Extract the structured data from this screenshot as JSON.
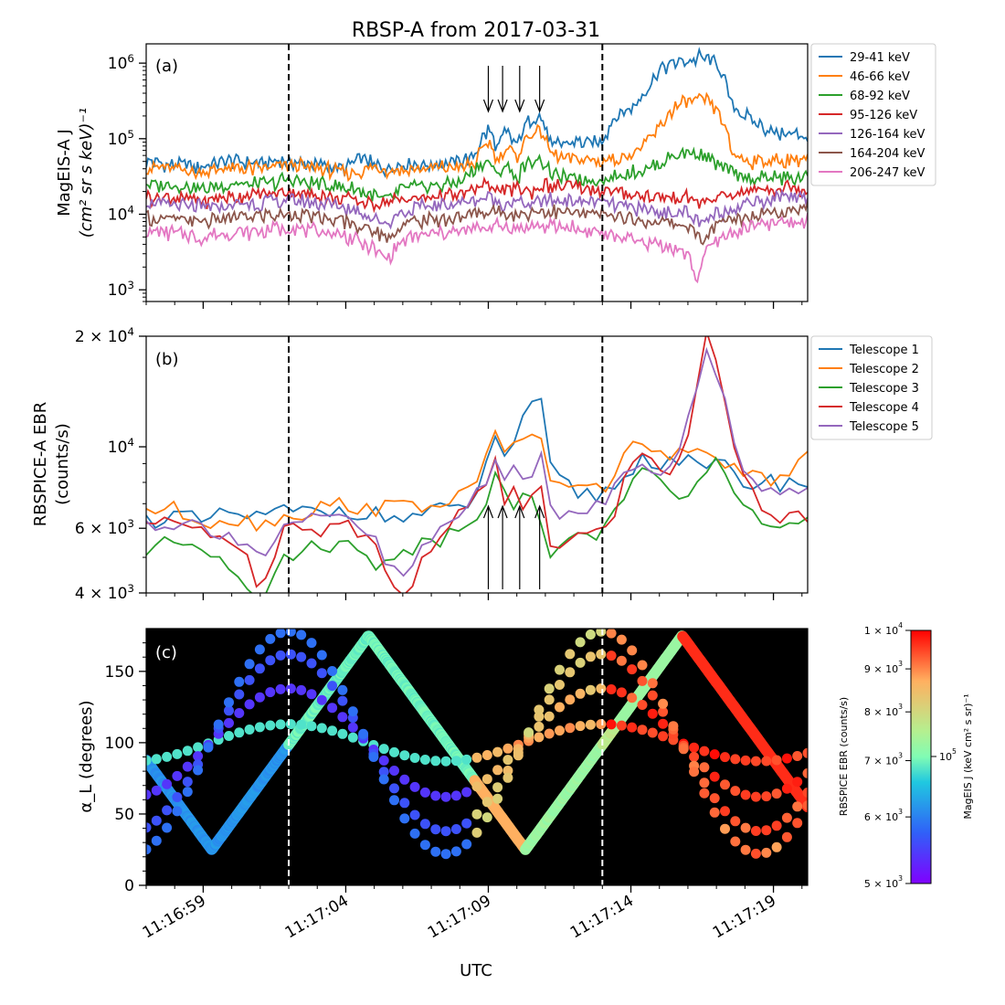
{
  "title": "RBSP-A from 2017-03-31",
  "xlabel": "UTC",
  "x_ticks": [
    {
      "t": 0,
      "label": "11:16:59"
    },
    {
      "t": 5,
      "label": "11:17:04"
    },
    {
      "t": 10,
      "label": "11:17:09"
    },
    {
      "t": 15,
      "label": "11:17:14"
    },
    {
      "t": 20,
      "label": "11:17:19"
    }
  ],
  "chart_data": [
    {
      "type": "line",
      "panel": "(a)",
      "ylabel_line1": "MagEIS-A J",
      "ylabel_line2": "(cm² sr s keV)⁻¹",
      "yscale": "log",
      "ylim": [
        700,
        1800000
      ],
      "y_ticks": [
        {
          "v": 1000,
          "base": "10",
          "exp": "3"
        },
        {
          "v": 10000,
          "base": "10",
          "exp": "4"
        },
        {
          "v": 100000,
          "base": "10",
          "exp": "5"
        },
        {
          "v": 1000000,
          "base": "10",
          "exp": "6"
        }
      ],
      "xlim": [
        -2.0,
        21.2
      ],
      "vlines": [
        3.0,
        14.0
      ],
      "arrows_x": [
        10.0,
        10.5,
        11.1,
        11.8
      ],
      "arrow_direction": "down",
      "legend_position": "outside-right",
      "series": [
        {
          "name": "29-41 keV",
          "color": "#1f77b4",
          "x": [
            -2.0,
            -1.0,
            0.0,
            1.0,
            2.0,
            3.0,
            4.0,
            5.0,
            5.5,
            6.0,
            6.5,
            7.0,
            8.0,
            9.0,
            9.5,
            10.0,
            10.3,
            10.6,
            11.0,
            11.3,
            11.8,
            12.2,
            13.0,
            14.0,
            14.5,
            15.0,
            15.5,
            16.0,
            16.5,
            17.0,
            17.5,
            18.0,
            18.5,
            19.0,
            19.5,
            20.0,
            21.0
          ],
          "values": [
            50000,
            45000,
            42000,
            50000,
            48000,
            50000,
            45000,
            40000,
            55000,
            45000,
            40000,
            48000,
            45000,
            50000,
            55000,
            130000,
            70000,
            120000,
            80000,
            150000,
            200000,
            80000,
            90000,
            90000,
            200000,
            250000,
            400000,
            800000,
            1000000,
            1100000,
            1200000,
            1000000,
            300000,
            200000,
            150000,
            120000,
            110000
          ]
        },
        {
          "name": "46-66 keV",
          "color": "#ff7f0e",
          "x": [
            -2.0,
            -1.0,
            0.0,
            1.0,
            2.0,
            3.0,
            4.0,
            5.0,
            6.0,
            7.0,
            8.0,
            9.0,
            9.5,
            10.0,
            10.3,
            10.6,
            11.0,
            11.3,
            11.8,
            12.2,
            13.0,
            14.0,
            15.0,
            15.5,
            16.0,
            16.5,
            17.0,
            17.5,
            18.0,
            18.5,
            19.0,
            20.0,
            21.0
          ],
          "values": [
            42000,
            40000,
            36000,
            40000,
            40000,
            45000,
            40000,
            35000,
            40000,
            38000,
            40000,
            42000,
            45000,
            90000,
            50000,
            80000,
            55000,
            100000,
            130000,
            60000,
            55000,
            50000,
            60000,
            80000,
            140000,
            250000,
            300000,
            330000,
            250000,
            70000,
            50000,
            50000,
            55000
          ]
        },
        {
          "name": "68-92 keV",
          "color": "#2ca02c",
          "x": [
            -2.0,
            -1.0,
            0.0,
            1.0,
            2.0,
            3.0,
            4.0,
            5.0,
            6.0,
            6.5,
            7.0,
            8.0,
            9.0,
            10.0,
            10.3,
            10.6,
            11.0,
            11.3,
            11.8,
            12.2,
            13.0,
            14.0,
            15.0,
            16.0,
            16.5,
            17.0,
            17.5,
            18.0,
            18.5,
            19.0,
            20.0,
            21.0
          ],
          "values": [
            25000,
            24000,
            22000,
            25000,
            25000,
            28000,
            25000,
            22000,
            18000,
            15000,
            22000,
            24000,
            26000,
            50000,
            30000,
            45000,
            28000,
            45000,
            55000,
            32000,
            30000,
            28000,
            35000,
            45000,
            60000,
            65000,
            60000,
            45000,
            35000,
            30000,
            30000,
            30000
          ]
        },
        {
          "name": "95-126 keV",
          "color": "#d62728",
          "x": [
            -2.0,
            -1.0,
            0.0,
            1.0,
            2.0,
            3.0,
            4.0,
            5.0,
            6.0,
            7.0,
            8.0,
            9.0,
            10.0,
            10.5,
            11.0,
            11.5,
            12.0,
            13.0,
            14.0,
            15.0,
            16.0,
            17.0,
            17.5,
            18.0,
            19.0,
            20.0,
            21.0
          ],
          "values": [
            17000,
            16000,
            15000,
            17000,
            18000,
            20000,
            18000,
            16000,
            14000,
            16000,
            17000,
            18000,
            25000,
            20000,
            22000,
            20000,
            24000,
            22000,
            20000,
            18000,
            16000,
            17000,
            14000,
            16000,
            20000,
            22000,
            22000
          ]
        },
        {
          "name": "126-164 keV",
          "color": "#9467bd",
          "x": [
            -2.0,
            -1.0,
            0.0,
            1.0,
            2.0,
            3.0,
            4.0,
            5.0,
            6.0,
            6.5,
            7.0,
            8.0,
            9.0,
            10.0,
            10.5,
            11.0,
            11.5,
            12.0,
            13.0,
            14.0,
            15.0,
            16.0,
            17.0,
            17.5,
            18.0,
            19.0,
            20.0,
            21.0
          ],
          "values": [
            14000,
            13000,
            12000,
            13000,
            14000,
            15000,
            14000,
            12000,
            9000,
            7500,
            11000,
            13000,
            14000,
            17000,
            14000,
            15000,
            13000,
            16000,
            15000,
            14000,
            12000,
            11000,
            10000,
            7000,
            10000,
            14000,
            16000,
            17000
          ]
        },
        {
          "name": "164-204 keV",
          "color": "#8c564b",
          "x": [
            -2.0,
            -1.0,
            0.0,
            1.0,
            2.0,
            3.0,
            4.0,
            5.0,
            6.0,
            6.5,
            7.0,
            8.0,
            9.0,
            10.0,
            11.0,
            12.0,
            13.0,
            14.0,
            15.0,
            16.0,
            17.0,
            17.5,
            18.0,
            19.0,
            20.0,
            21.0
          ],
          "values": [
            9000,
            8500,
            8000,
            9000,
            9500,
            10000,
            9000,
            8000,
            6000,
            4500,
            7500,
            8500,
            9000,
            11000,
            10000,
            11000,
            10000,
            10000,
            8500,
            8000,
            7000,
            4500,
            7000,
            9500,
            11000,
            12000
          ]
        },
        {
          "name": "206-247 keV",
          "color": "#e377c2",
          "x": [
            -2.0,
            -1.0,
            0.0,
            1.0,
            2.0,
            3.0,
            4.0,
            5.0,
            6.0,
            6.5,
            7.0,
            8.0,
            9.0,
            10.0,
            11.0,
            12.0,
            13.0,
            14.0,
            15.0,
            16.0,
            17.0,
            17.3,
            17.5,
            18.0,
            19.0,
            20.0,
            21.0
          ],
          "values": [
            6000,
            5500,
            5000,
            5500,
            6000,
            6500,
            6000,
            5000,
            3500,
            2500,
            4500,
            5500,
            6000,
            7000,
            6500,
            7000,
            6500,
            5500,
            4500,
            4000,
            3000,
            1200,
            2500,
            4500,
            6500,
            7500,
            8000
          ]
        }
      ]
    },
    {
      "type": "line",
      "panel": "(b)",
      "ylabel_line1": "RBSPICE-A EBR",
      "ylabel_line2": "(counts/s)",
      "yscale": "log",
      "ylim": [
        4000,
        20000
      ],
      "y_ticks": [
        {
          "v": 4000,
          "base": "4 × 10",
          "exp": "3"
        },
        {
          "v": 6000,
          "base": "6 × 10",
          "exp": "3"
        },
        {
          "v": 10000,
          "base": "10",
          "exp": "4"
        },
        {
          "v": 20000,
          "base": "2 × 10",
          "exp": "4"
        }
      ],
      "xlim": [
        -2.0,
        21.2
      ],
      "vlines": [
        3.0,
        14.0
      ],
      "arrows_x": [
        10.0,
        10.5,
        11.1,
        11.8
      ],
      "arrow_direction": "up",
      "legend_position": "outside-right",
      "series": [
        {
          "name": "Telescope 1",
          "color": "#1f77b4",
          "x": [
            -2.0,
            -1.0,
            0.0,
            1.0,
            2.0,
            3.0,
            4.0,
            5.0,
            6.0,
            7.0,
            8.0,
            9.0,
            9.5,
            10.0,
            10.3,
            10.6,
            11.0,
            11.3,
            11.8,
            12.2,
            13.0,
            14.0,
            15.0,
            15.5,
            16.0,
            16.5,
            17.0,
            17.5,
            18.0,
            18.5,
            19.0,
            20.0,
            21.0
          ],
          "values": [
            6300,
            6500,
            6200,
            6600,
            6400,
            6700,
            6600,
            6800,
            6500,
            6400,
            6600,
            6800,
            7200,
            9000,
            11000,
            9500,
            10500,
            12000,
            13500,
            8500,
            7500,
            7400,
            8500,
            9500,
            9000,
            9500,
            9000,
            8500,
            9000,
            8500,
            8000,
            8000,
            8000
          ]
        },
        {
          "name": "Telescope 2",
          "color": "#ff7f0e",
          "x": [
            -2.0,
            -1.0,
            0.0,
            1.0,
            2.0,
            3.0,
            4.0,
            5.0,
            6.0,
            7.0,
            8.0,
            9.0,
            9.5,
            10.0,
            10.3,
            10.6,
            11.0,
            11.3,
            11.8,
            12.2,
            13.0,
            14.0,
            15.0,
            15.5,
            16.0,
            16.5,
            17.0,
            17.5,
            18.0,
            18.5,
            19.0,
            20.0,
            21.0
          ],
          "values": [
            6800,
            6700,
            6300,
            6400,
            6200,
            6500,
            6800,
            7000,
            6800,
            6900,
            7000,
            7200,
            7500,
            10000,
            11500,
            9800,
            10500,
            10000,
            10800,
            8200,
            7600,
            7600,
            10000,
            10500,
            9200,
            9600,
            9600,
            9400,
            9800,
            8600,
            8200,
            8000,
            9200
          ]
        },
        {
          "name": "Telescope 3",
          "color": "#2ca02c",
          "x": [
            -2.0,
            -1.0,
            0.0,
            1.0,
            2.0,
            3.0,
            4.0,
            5.0,
            6.0,
            7.0,
            8.0,
            9.0,
            9.5,
            10.0,
            10.3,
            10.6,
            11.0,
            11.3,
            11.8,
            12.2,
            13.0,
            14.0,
            15.0,
            15.5,
            16.0,
            16.5,
            17.0,
            17.5,
            18.0,
            18.5,
            19.0,
            20.0,
            21.0
          ],
          "values": [
            5200,
            5500,
            5400,
            4800,
            3900,
            5000,
            5500,
            5400,
            4800,
            5300,
            5500,
            6000,
            6500,
            7500,
            9000,
            7000,
            7200,
            7400,
            6400,
            5200,
            5500,
            6000,
            8000,
            8500,
            7800,
            7200,
            7400,
            8500,
            9500,
            7500,
            6600,
            6200,
            6200
          ]
        },
        {
          "name": "Telescope 4",
          "color": "#d62728",
          "x": [
            -2.0,
            -1.0,
            0.0,
            1.0,
            2.0,
            3.0,
            4.0,
            5.0,
            6.0,
            6.5,
            7.0,
            8.0,
            9.0,
            9.5,
            10.0,
            10.3,
            10.6,
            11.0,
            11.3,
            11.8,
            12.2,
            13.0,
            14.0,
            14.5,
            15.0,
            15.5,
            16.0,
            16.5,
            17.0,
            17.3,
            17.6,
            18.0,
            18.5,
            19.0,
            19.5,
            20.0,
            21.0
          ],
          "values": [
            6200,
            6100,
            6000,
            5600,
            4200,
            6300,
            6000,
            6200,
            5500,
            4300,
            3800,
            5500,
            6500,
            7000,
            8000,
            9500,
            6800,
            8500,
            6500,
            8400,
            5500,
            5500,
            6300,
            6200,
            9500,
            9500,
            9000,
            8800,
            11000,
            15000,
            20000,
            17000,
            10000,
            8500,
            7000,
            6500,
            6500
          ]
        },
        {
          "name": "Telescope 5",
          "color": "#9467bd",
          "x": [
            -2.0,
            -1.0,
            0.0,
            1.0,
            2.0,
            3.0,
            4.0,
            5.0,
            6.0,
            6.5,
            7.0,
            8.0,
            9.0,
            9.5,
            10.0,
            10.3,
            10.6,
            11.0,
            11.3,
            11.8,
            12.2,
            13.0,
            14.0,
            14.5,
            15.0,
            15.5,
            16.0,
            16.5,
            17.0,
            17.3,
            17.6,
            18.0,
            18.5,
            19.0,
            19.5,
            20.0,
            21.0
          ],
          "values": [
            6200,
            6200,
            6100,
            5800,
            5000,
            6000,
            6300,
            6500,
            5600,
            4600,
            4400,
            5600,
            6500,
            7300,
            8300,
            10000,
            8000,
            9500,
            7800,
            9500,
            6500,
            6500,
            7200,
            7800,
            9000,
            9200,
            8600,
            9500,
            11500,
            14000,
            18000,
            16000,
            11000,
            8800,
            8000,
            7500,
            7500
          ]
        }
      ]
    },
    {
      "type": "scatter",
      "panel": "(c)",
      "ylabel": "α_L (degrees)",
      "ylim": [
        0,
        180
      ],
      "y_ticks": [
        0,
        50,
        100,
        150
      ],
      "xlim": [
        -2.0,
        21.2
      ],
      "vlines": [
        3.0,
        14.0
      ],
      "background": "#000000",
      "colormap": "rainbow",
      "colorbar": {
        "range": [
          5000,
          10000
        ],
        "ticks": [
          {
            "v": 5000,
            "base": "5 × 10",
            "exp": "3"
          },
          {
            "v": 6000,
            "base": "6 × 10",
            "exp": "3"
          },
          {
            "v": 7000,
            "base": "7 × 10",
            "exp": "3"
          },
          {
            "v": 8000,
            "base": "8 × 10",
            "exp": "3"
          },
          {
            "v": 9000,
            "base": "9 × 10",
            "exp": "3"
          },
          {
            "v": 10000,
            "base": "1 × 10",
            "exp": "4"
          }
        ],
        "left_label": "RBSPICE EBR (counts/s)",
        "right_label": "MagEIS J (keV cm² s sr)⁻¹",
        "right_tick": {
          "base": "10",
          "exp": "5"
        }
      },
      "sweep": {
        "period_s": 11.0,
        "min_deg": 25,
        "max_deg": 175,
        "min_time_s": 0.3
      },
      "telescope_curves": [
        {
          "mid_deg": 100,
          "amp_deg": 13
        },
        {
          "mid_deg": 100,
          "amp_deg": 38
        },
        {
          "mid_deg": 100,
          "amp_deg": 62
        },
        {
          "mid_deg": 100,
          "amp_deg": 78
        }
      ],
      "color_segments": [
        {
          "x0": -2.0,
          "x1": 3.0,
          "level": 0.3,
          "band_level": 0.1
        },
        {
          "x0": 3.0,
          "x1": 9.5,
          "level": 0.48,
          "band_level": 0.05
        },
        {
          "x0": 9.5,
          "x1": 14.0,
          "level": 0.55,
          "band_level": 0.8
        },
        {
          "x0": 14.0,
          "x1": 21.2,
          "level": 0.62,
          "band_level": 0.95
        }
      ]
    }
  ]
}
